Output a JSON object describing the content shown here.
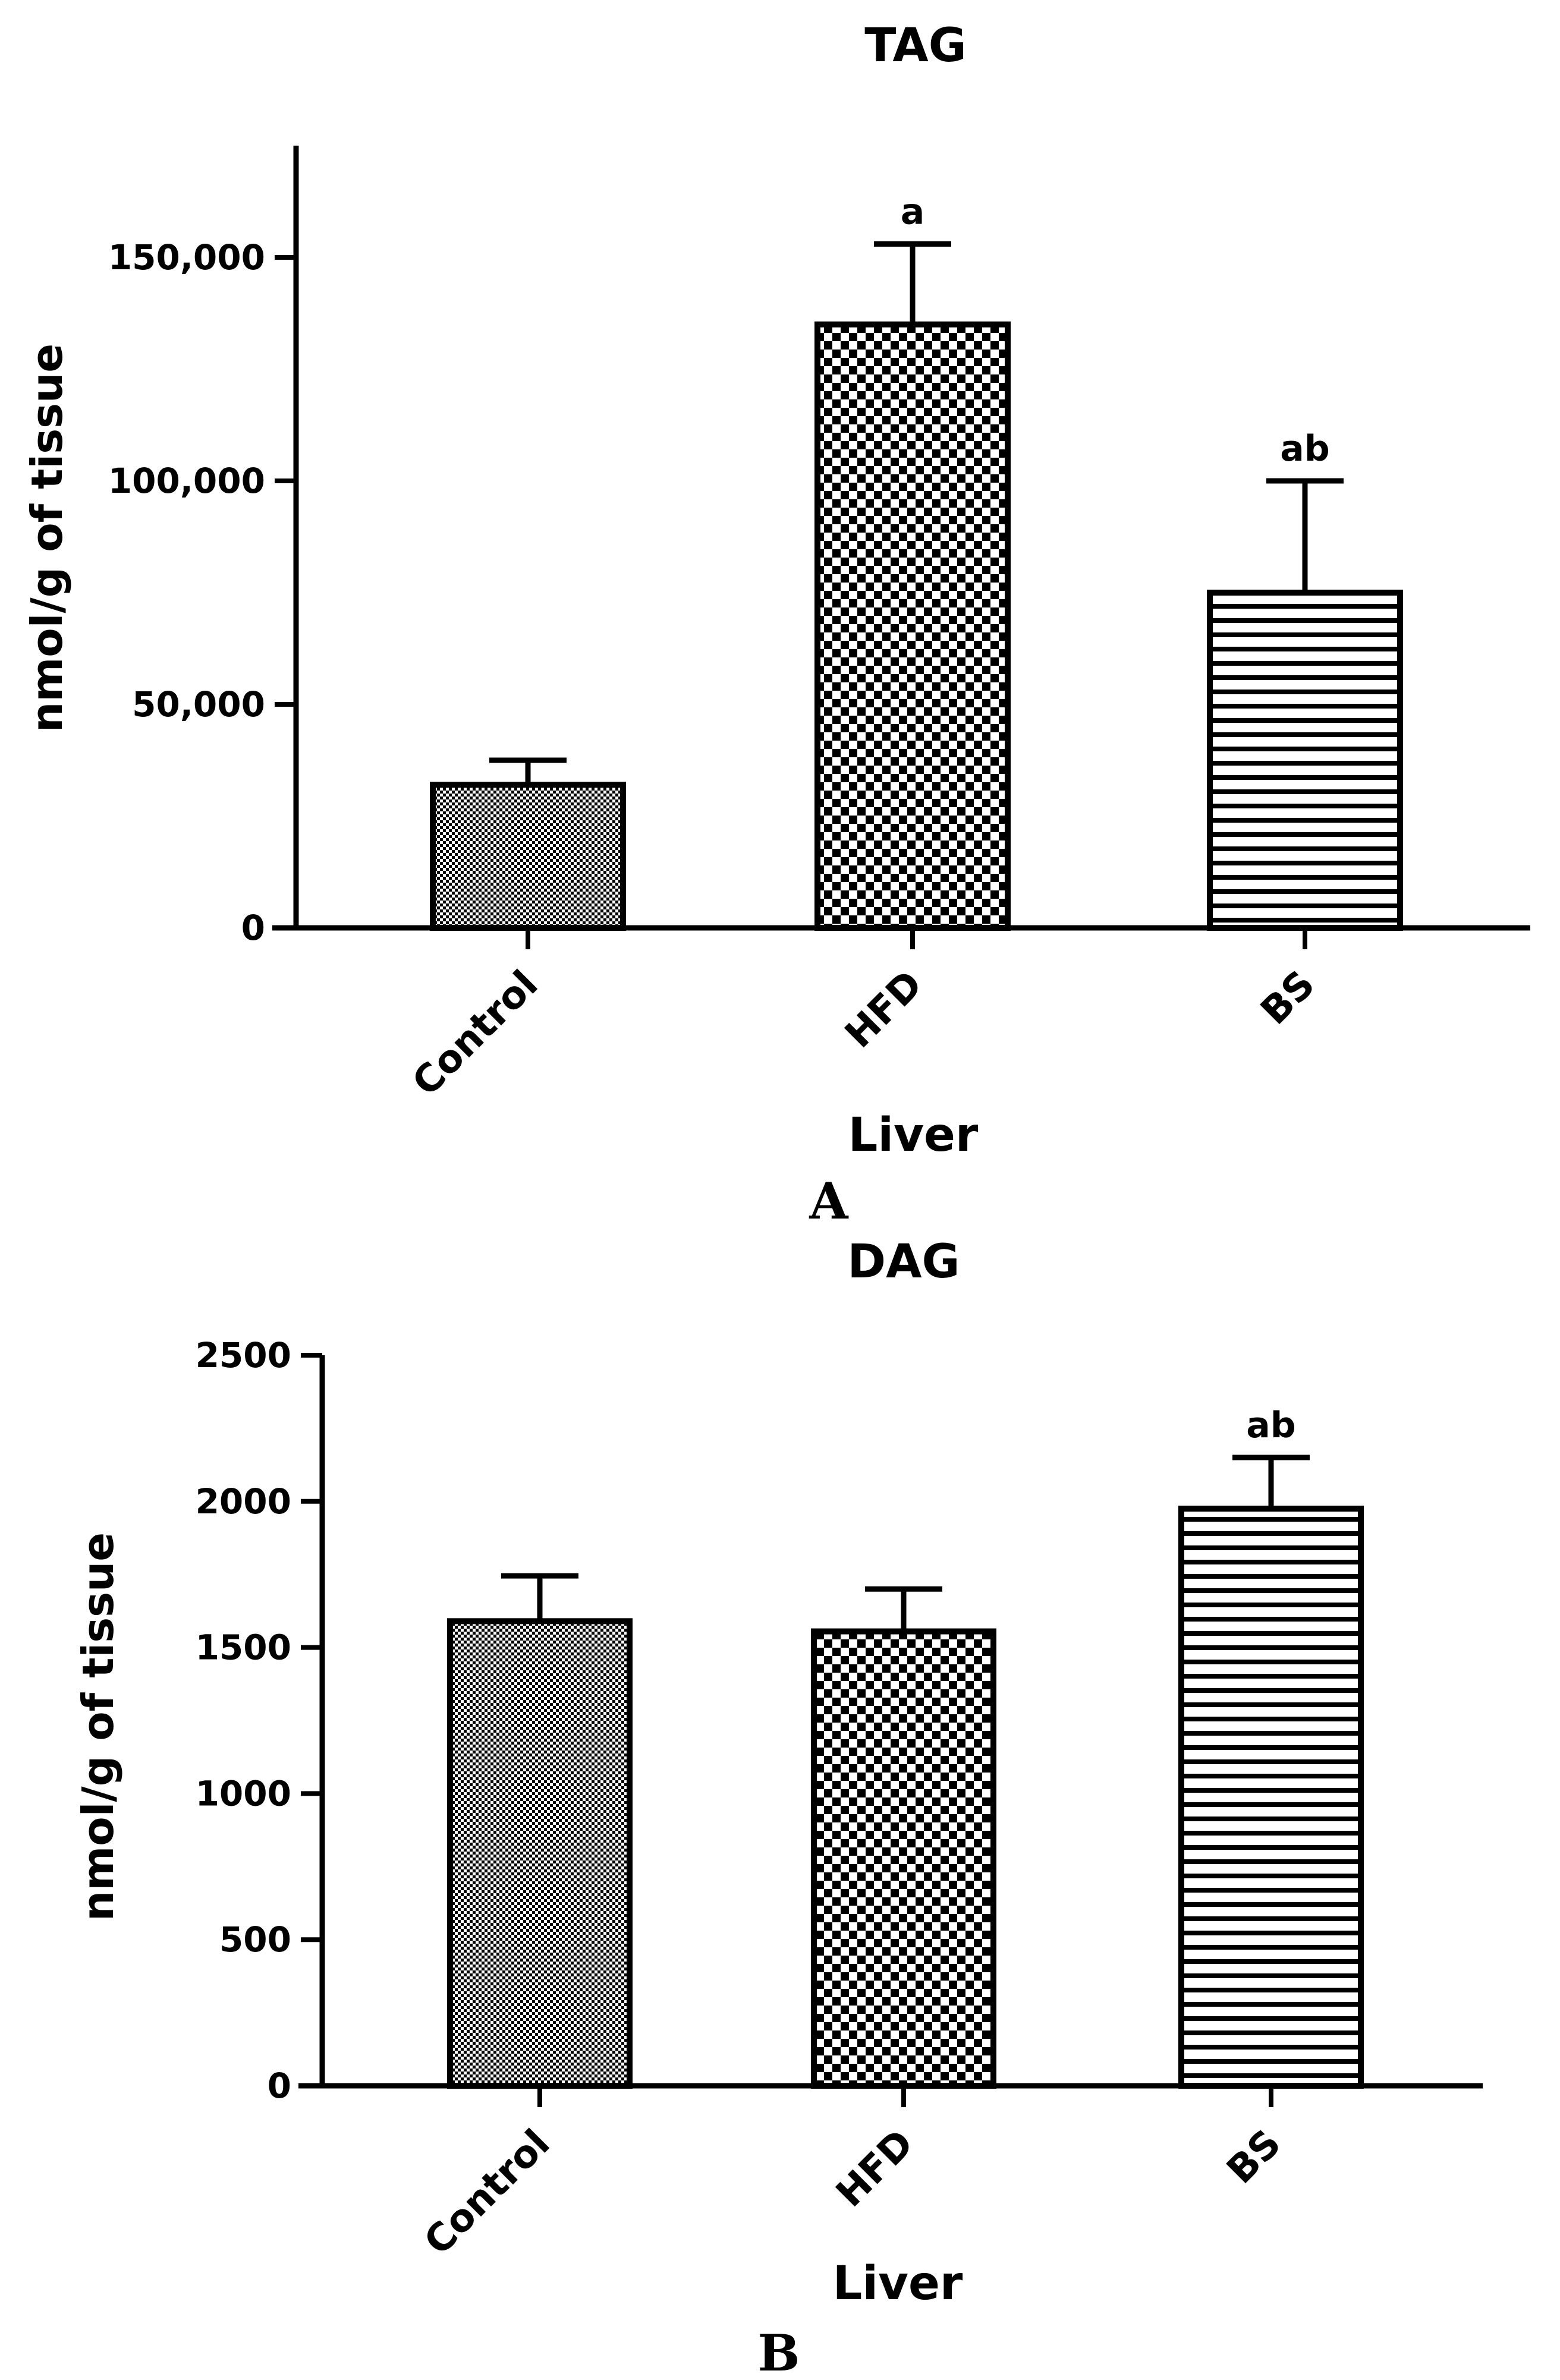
{
  "colors": {
    "ink": "#000000",
    "background": "#ffffff"
  },
  "chart_data": [
    {
      "panel_label": "A",
      "type": "bar",
      "title": "TAG",
      "xlabel": "Liver",
      "ylabel": "nmol/g of tissue",
      "categories": [
        "Control",
        "HFD",
        "BS"
      ],
      "values": [
        32000,
        135000,
        75000
      ],
      "errors": [
        5500,
        18000,
        25000
      ],
      "patterns": [
        "fine-check",
        "checker",
        "horizontal-lines"
      ],
      "annotations": [
        "",
        "a",
        "ab"
      ],
      "ylim": [
        0,
        175000
      ],
      "yticks": [
        0,
        50000,
        100000,
        150000
      ],
      "ytick_labels": [
        "0",
        "50,000",
        "100,000",
        "150,000"
      ]
    },
    {
      "panel_label": "B",
      "type": "bar",
      "title": "DAG",
      "xlabel": "Liver",
      "ylabel": "nmol/g of tissue",
      "categories": [
        "Control",
        "HFD",
        "BS"
      ],
      "values": [
        1590,
        1555,
        1975
      ],
      "errors": [
        155,
        145,
        175
      ],
      "patterns": [
        "fine-check",
        "checker",
        "horizontal-lines"
      ],
      "annotations": [
        "",
        "",
        "ab"
      ],
      "ylim": [
        0,
        2500
      ],
      "yticks": [
        0,
        500,
        1000,
        1500,
        2000,
        2500
      ],
      "ytick_labels": [
        "0",
        "500",
        "1000",
        "1500",
        "2000",
        "2500"
      ]
    }
  ]
}
